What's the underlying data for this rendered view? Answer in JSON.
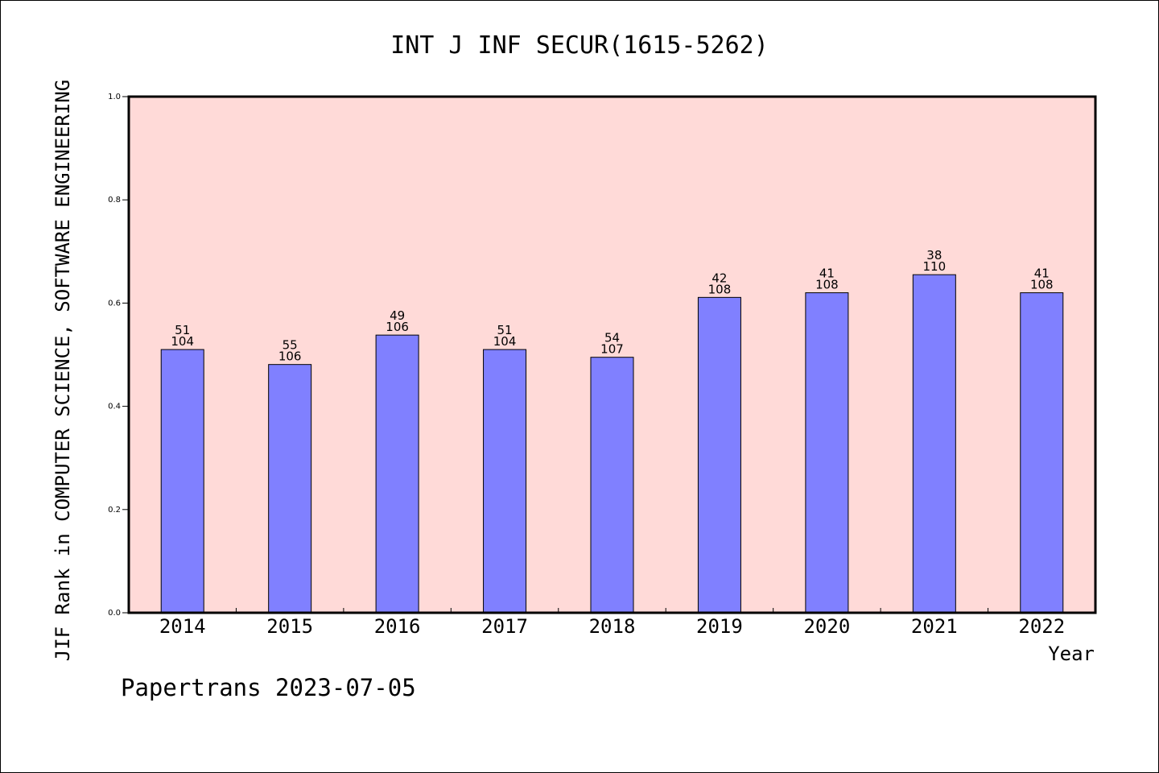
{
  "footer": "Papertrans 2023-07-05",
  "chart_data": {
    "type": "bar",
    "title": "INT J INF SECUR(1615-5262)",
    "xlabel": "Year",
    "ylabel": "JIF Rank in COMPUTER SCIENCE, SOFTWARE ENGINEERING",
    "ylim": [
      0,
      1.0
    ],
    "yticks": [
      "0.0",
      "0.2",
      "0.4",
      "0.6",
      "0.8",
      "1.0"
    ],
    "grid": false,
    "categories": [
      "2014",
      "2015",
      "2016",
      "2017",
      "2018",
      "2019",
      "2020",
      "2021",
      "2022"
    ],
    "values": [
      0.51,
      0.481,
      0.538,
      0.51,
      0.495,
      0.611,
      0.62,
      0.655,
      0.62
    ],
    "rank_labels": [
      "51",
      "55",
      "49",
      "51",
      "54",
      "42",
      "41",
      "38",
      "41"
    ],
    "total_labels": [
      "104",
      "106",
      "106",
      "104",
      "107",
      "108",
      "108",
      "110",
      "108"
    ],
    "colors": {
      "plot_background": "#FFDAD8",
      "bar_fill": "#8080FF",
      "bar_stroke": "#000000"
    }
  }
}
